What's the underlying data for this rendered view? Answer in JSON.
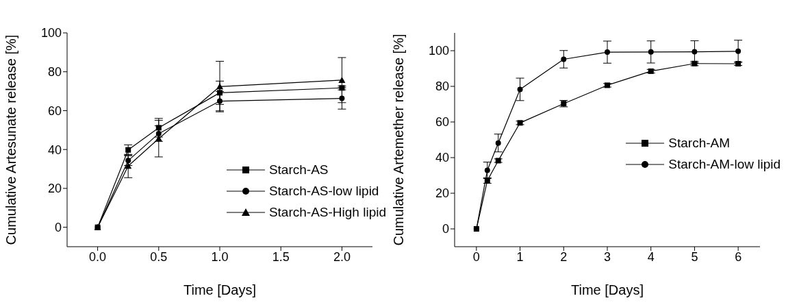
{
  "chart_data": [
    {
      "type": "line",
      "xlabel": "Time [Days]",
      "ylabel": "Cumulative Artesunate release [%]",
      "x": [
        0,
        0.25,
        0.5,
        1,
        2
      ],
      "xlim": [
        -0.25,
        2.25
      ],
      "xticks": [
        {
          "value": 0,
          "label": "0.0"
        },
        {
          "value": 0.5,
          "label": "0.5"
        },
        {
          "value": 1,
          "label": "1.0"
        },
        {
          "value": 1.5,
          "label": "1.5"
        },
        {
          "value": 2,
          "label": "2.0"
        }
      ],
      "ylim": [
        -10,
        100
      ],
      "yticks": [
        0,
        20,
        40,
        60,
        80,
        100
      ],
      "grid": false,
      "legend": "lower right",
      "series": [
        {
          "name": "Starch-AS",
          "color": "#000000",
          "marker": "square",
          "values": [
            0,
            39.8,
            51.2,
            69.2,
            71.7
          ],
          "errors": [
            null,
            2.6,
            4.8,
            6,
            1
          ]
        },
        {
          "name": "Starch-AS-low lipid",
          "color": "#000000",
          "marker": "circle",
          "values": [
            0,
            34.3,
            48.2,
            64.9,
            66.3
          ],
          "errors": [
            null,
            2.5,
            4,
            5,
            5.5
          ]
        },
        {
          "name": "Starch-AS-High lipid",
          "color": "#000000",
          "marker": "triangle",
          "values": [
            0,
            31.5,
            45.6,
            72.4,
            75.7
          ],
          "errors": [
            null,
            6,
            9.4,
            13,
            11.6
          ]
        }
      ]
    },
    {
      "type": "line",
      "xlabel": "Time [Days]",
      "ylabel": "Cumulative Artemether release [%]",
      "x": [
        0,
        0.25,
        0.5,
        1,
        2,
        3,
        4,
        5,
        6
      ],
      "xlim": [
        -0.5,
        6.5
      ],
      "xticks": [
        0,
        1,
        2,
        3,
        4,
        5,
        6
      ],
      "ylim": [
        -10,
        110
      ],
      "yticks": [
        0,
        20,
        40,
        60,
        80,
        100
      ],
      "grid": false,
      "legend": "right",
      "series": [
        {
          "name": "Starch-AM",
          "color": "#000000",
          "marker": "square",
          "values": [
            0,
            27.1,
            38.3,
            59.5,
            70.3,
            80.6,
            88.5,
            92.8,
            92.7
          ],
          "errors": [
            null,
            1.5,
            1,
            1,
            1.8,
            1,
            1,
            1.2,
            1
          ]
        },
        {
          "name": "Starch-AM-low lipid",
          "color": "#000000",
          "marker": "circle",
          "values": [
            0,
            32.9,
            48.2,
            78.3,
            95.2,
            99.2,
            99.3,
            99.4,
            99.7
          ],
          "errors": [
            null,
            4.6,
            5,
            6.3,
            4.9,
            6.2,
            6.2,
            6.2,
            6.2
          ]
        }
      ]
    }
  ]
}
